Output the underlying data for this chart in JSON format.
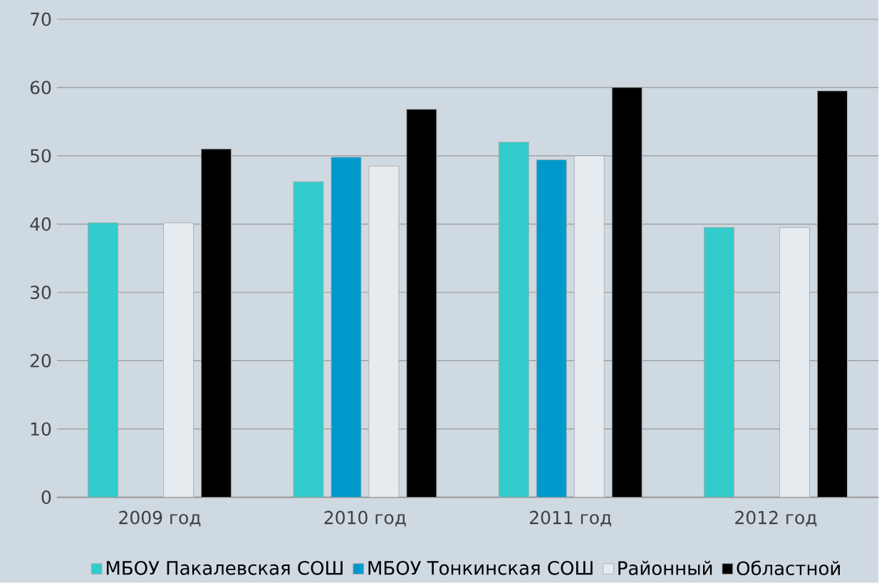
{
  "chart_data": {
    "type": "bar",
    "categories": [
      "2009 год",
      "2010 год",
      "2011 год",
      "2012 год"
    ],
    "series": [
      {
        "name": "МБОУ Пакалевская СОШ",
        "color": "#33cccc",
        "values": [
          40.2,
          46.2,
          52.0,
          39.5
        ]
      },
      {
        "name": "МБОУ Тонкинская СОШ",
        "color": "#0099cc",
        "values": [
          null,
          49.8,
          49.4,
          null
        ]
      },
      {
        "name": "Районный",
        "color": "#e6ebef",
        "values": [
          40.2,
          48.5,
          50.0,
          39.5
        ]
      },
      {
        "name": "Областной",
        "color": "#000000",
        "values": [
          51.0,
          56.8,
          60.0,
          59.5
        ]
      }
    ],
    "ylim": [
      0,
      70
    ],
    "yticks": [
      0,
      10,
      20,
      30,
      40,
      50,
      60,
      70
    ],
    "grid": "y",
    "legend": "bottom"
  }
}
